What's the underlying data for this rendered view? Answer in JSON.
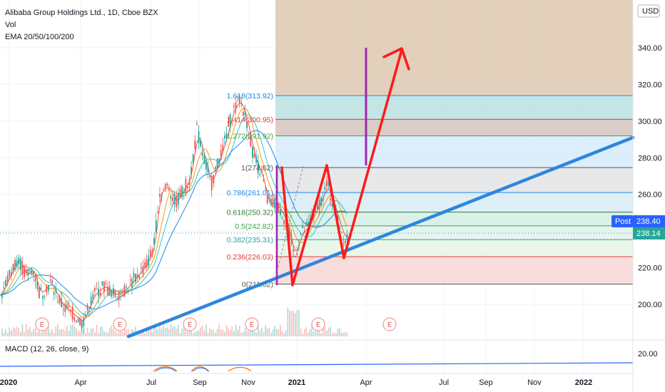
{
  "header": {
    "title": "Alibaba Group Holdings Ltd., 1D, Cboe BZX",
    "vol_label": "Vol",
    "ema_label": "EMA 20/50/100/200"
  },
  "currency_button": "USD",
  "macd_label": "MACD (12, 26, close, 9)",
  "price_tags": {
    "post_label": "Post",
    "post_value": "238.40",
    "last_value": "238.14"
  },
  "colors": {
    "up": "#26a69a",
    "down": "#ef5350",
    "trendline": "#2e86de",
    "projection": "#ff1a1a",
    "fib_stroke": "#6d4c41",
    "magenta": "#9c27b0"
  },
  "chart_data": {
    "type": "candlestick",
    "symbol": "Alibaba Group Holdings Ltd.",
    "interval": "1D",
    "exchange": "Cboe BZX",
    "x_ticks": [
      "2020",
      "Apr",
      "Jul",
      "Sep",
      "Nov",
      "2021",
      "Apr",
      "Jul",
      "Sep",
      "Nov",
      "2022"
    ],
    "y_ticks": [
      "340.00",
      "320.00",
      "300.00",
      "280.00",
      "260.00",
      "240.00",
      "220.00",
      "200.00"
    ],
    "ylim": [
      182,
      365
    ],
    "macd_y_tick": "20.00",
    "fib_levels": [
      {
        "label": "0(211.02)",
        "ratio": 0,
        "price": 211.02
      },
      {
        "label": "0.236(226.03)",
        "ratio": 0.236,
        "price": 226.03
      },
      {
        "label": "0.382(235.31)",
        "ratio": 0.382,
        "price": 235.31
      },
      {
        "label": "0.5(242.82)",
        "ratio": 0.5,
        "price": 242.82
      },
      {
        "label": "0.618(250.32)",
        "ratio": 0.618,
        "price": 250.32
      },
      {
        "label": "0.786(261.01)",
        "ratio": 0.786,
        "price": 261.01
      },
      {
        "label": "1(274.62)",
        "ratio": 1,
        "price": 274.62
      },
      {
        "label": "1.272(291.92)",
        "ratio": 1.272,
        "price": 291.92
      },
      {
        "label": "1.414(300.95)",
        "ratio": 1.414,
        "price": 300.95
      },
      {
        "label": "1.618(313.92)",
        "ratio": 1.618,
        "price": 313.92
      }
    ],
    "earnings_marker": "E",
    "earnings_count": 6,
    "post_price": 238.4,
    "last_price": 238.14
  }
}
